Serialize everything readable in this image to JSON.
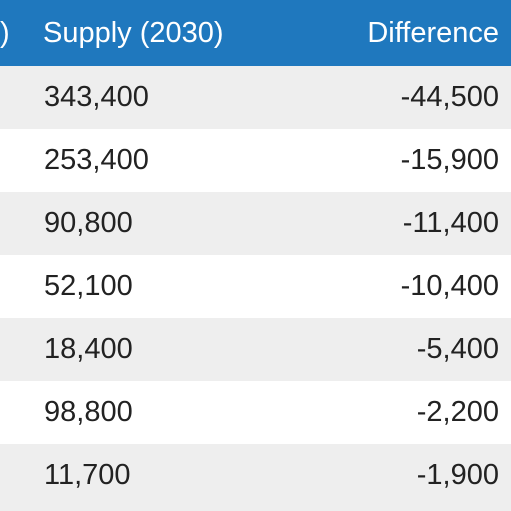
{
  "table": {
    "columns": {
      "previous_partial": ")",
      "supply": "Supply (2030)",
      "difference": "Difference"
    },
    "rows": [
      {
        "supply": "343,400",
        "difference": "-44,500"
      },
      {
        "supply": "253,400",
        "difference": "-15,900"
      },
      {
        "supply": "90,800",
        "difference": "-11,400"
      },
      {
        "supply": "52,100",
        "difference": "-10,400"
      },
      {
        "supply": "18,400",
        "difference": "-5,400"
      },
      {
        "supply": "98,800",
        "difference": "-2,200"
      },
      {
        "supply": "11,700",
        "difference": "-1,900"
      }
    ]
  },
  "colors": {
    "header_bg": "#1f78be",
    "header_text": "#ffffff",
    "row_shaded": "#eeeeee",
    "row_plain": "#ffffff",
    "body_text": "#222222"
  }
}
